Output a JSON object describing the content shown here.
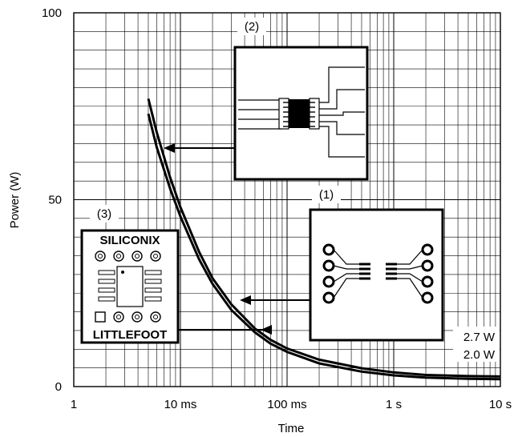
{
  "chart_data": {
    "type": "line",
    "xlabel": "Time",
    "ylabel": "Power (W)",
    "xscale": "log",
    "x_tick_values": [
      0.001,
      0.01,
      0.1,
      1,
      10
    ],
    "x_tick_labels": [
      "1",
      "10 ms",
      "100 ms",
      "1 s",
      "10 s"
    ],
    "y_tick_values": [
      0,
      50,
      100
    ],
    "y_tick_labels": [
      "0",
      "50",
      "100"
    ],
    "xlim": [
      0.001,
      10
    ],
    "ylim": [
      0,
      100
    ],
    "grid": true,
    "series": [
      {
        "x": [
          0.005,
          0.006,
          0.008,
          0.01,
          0.015,
          0.02,
          0.03,
          0.05,
          0.07,
          0.1,
          0.2,
          0.5,
          1,
          2,
          5,
          10
        ],
        "y": [
          77,
          68,
          56,
          48,
          36,
          29,
          22,
          15.5,
          12.5,
          10.2,
          7.2,
          4.9,
          3.8,
          3.1,
          2.8,
          2.7
        ]
      },
      {
        "x": [
          0.005,
          0.006,
          0.008,
          0.01,
          0.015,
          0.02,
          0.03,
          0.05,
          0.07,
          0.1,
          0.2,
          0.5,
          1,
          2,
          5,
          10
        ],
        "y": [
          73,
          64,
          53,
          45.5,
          34,
          27.5,
          20.5,
          14.5,
          11.5,
          9.3,
          6.2,
          4.0,
          3.0,
          2.4,
          2.1,
          2.0
        ]
      }
    ],
    "annotations": {
      "label_1": "(1)",
      "label_2": "(2)",
      "label_3": "(3)",
      "level_high": "2.7 W",
      "level_low": "2.0 W",
      "brand_top": "SILICONIX",
      "brand_bottom": "LITTLEFOOT"
    }
  }
}
